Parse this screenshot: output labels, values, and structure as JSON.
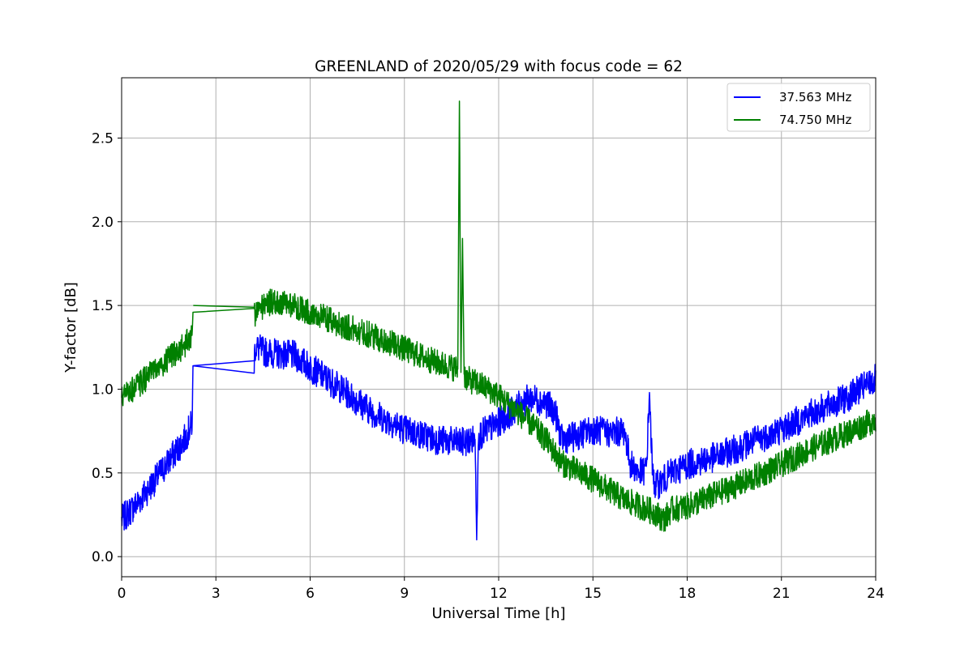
{
  "chart_data": {
    "type": "line",
    "title": "GREENLAND of 2020/05/29 with focus code = 62",
    "xlabel": "Universal Time [h]",
    "ylabel": "Y-factor [dB]",
    "xlim": [
      0,
      24
    ],
    "ylim": [
      -0.12,
      2.86
    ],
    "xticks": [
      0,
      3,
      6,
      9,
      12,
      15,
      18,
      21,
      24
    ],
    "yticks": [
      0.0,
      0.5,
      1.0,
      1.5,
      2.0,
      2.5
    ],
    "xtick_labels": [
      "0",
      "3",
      "6",
      "9",
      "12",
      "15",
      "18",
      "21",
      "24"
    ],
    "ytick_labels": [
      "0.0",
      "0.5",
      "1.0",
      "1.5",
      "2.0",
      "2.5"
    ],
    "grid": true,
    "legend": "top-right",
    "series": [
      {
        "name": "37.563 MHz",
        "color": "#0000ff",
        "x": [
          0.0,
          0.5,
          1.0,
          1.5,
          2.0,
          2.25,
          2.27,
          4.22,
          4.25,
          4.6,
          5.5,
          6.0,
          7.0,
          8.0,
          9.0,
          10.0,
          10.8,
          11.25,
          11.3,
          11.35,
          11.5,
          12.0,
          12.5,
          13.0,
          13.5,
          13.8,
          14.0,
          14.5,
          15.0,
          15.5,
          16.0,
          16.2,
          16.5,
          16.7,
          16.8,
          16.9,
          17.0,
          17.5,
          18.0,
          19.0,
          20.0,
          21.0,
          22.0,
          23.0,
          24.0
        ],
        "y": [
          0.22,
          0.32,
          0.44,
          0.57,
          0.7,
          0.8,
          1.14,
          1.17,
          1.25,
          1.22,
          1.2,
          1.13,
          1.0,
          0.86,
          0.76,
          0.7,
          0.68,
          0.7,
          0.1,
          0.72,
          0.74,
          0.8,
          0.88,
          0.95,
          0.92,
          0.86,
          0.7,
          0.72,
          0.76,
          0.74,
          0.75,
          0.55,
          0.5,
          0.52,
          0.98,
          0.48,
          0.42,
          0.5,
          0.55,
          0.6,
          0.68,
          0.76,
          0.86,
          0.94,
          1.06
        ],
        "noise": 0.09
      },
      {
        "name": "74.750 MHz",
        "color": "#008000",
        "x": [
          0.0,
          0.5,
          1.0,
          1.5,
          2.0,
          2.25,
          2.27,
          4.22,
          4.25,
          4.6,
          5.5,
          6.0,
          7.0,
          8.0,
          9.0,
          10.0,
          10.7,
          10.75,
          10.8,
          10.85,
          10.9,
          11.0,
          11.5,
          12.0,
          12.5,
          13.0,
          13.5,
          14.0,
          15.0,
          16.0,
          17.0,
          17.25,
          17.5,
          18.0,
          19.0,
          20.0,
          21.0,
          22.0,
          23.0,
          24.0
        ],
        "y": [
          0.95,
          1.02,
          1.1,
          1.18,
          1.26,
          1.32,
          1.5,
          1.49,
          1.45,
          1.52,
          1.5,
          1.46,
          1.38,
          1.32,
          1.24,
          1.16,
          1.12,
          2.72,
          1.1,
          1.9,
          1.09,
          1.06,
          1.02,
          0.96,
          0.88,
          0.8,
          0.7,
          0.56,
          0.46,
          0.34,
          0.26,
          0.22,
          0.28,
          0.3,
          0.38,
          0.46,
          0.55,
          0.65,
          0.73,
          0.82
        ],
        "noise": 0.08
      }
    ]
  }
}
